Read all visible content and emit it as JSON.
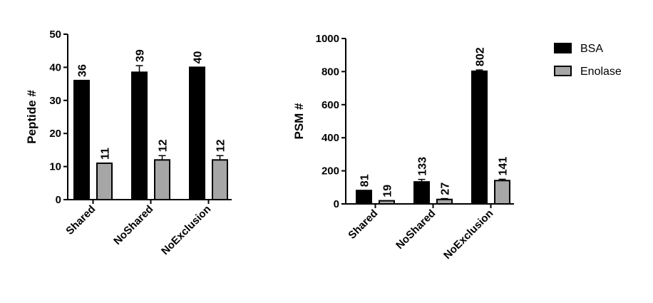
{
  "colors": {
    "BSA": "#000000",
    "Enolase": "#a6a6a6",
    "axis": "#000000"
  },
  "legend": {
    "items": [
      "BSA",
      "Enolase"
    ]
  },
  "chart_data": [
    {
      "type": "bar",
      "ylabel": "Peptide #",
      "ylim": [
        0,
        50
      ],
      "yticks": [
        0,
        10,
        20,
        30,
        40,
        50
      ],
      "categories": [
        "Shared",
        "NoShared",
        "NoExclusion"
      ],
      "series": [
        {
          "name": "BSA",
          "values": [
            36,
            38.5,
            40
          ],
          "labels": [
            "36",
            "39",
            "40"
          ],
          "errors": [
            0,
            2,
            0
          ]
        },
        {
          "name": "Enolase",
          "values": [
            11,
            12,
            12
          ],
          "labels": [
            "11",
            "12",
            "12"
          ],
          "errors": [
            0,
            1.3,
            1.3
          ]
        }
      ]
    },
    {
      "type": "bar",
      "ylabel": "PSM #",
      "ylim": [
        0,
        1000
      ],
      "yticks": [
        0,
        200,
        400,
        600,
        800,
        1000
      ],
      "categories": [
        "Shared",
        "NoShared",
        "NoExclusion"
      ],
      "series": [
        {
          "name": "BSA",
          "values": [
            81,
            133,
            802
          ],
          "labels": [
            "81",
            "133",
            "802"
          ],
          "errors": [
            0,
            15,
            8
          ]
        },
        {
          "name": "Enolase",
          "values": [
            19,
            27,
            141
          ],
          "labels": [
            "19",
            "27",
            "141"
          ],
          "errors": [
            0,
            5,
            8
          ]
        }
      ]
    }
  ]
}
